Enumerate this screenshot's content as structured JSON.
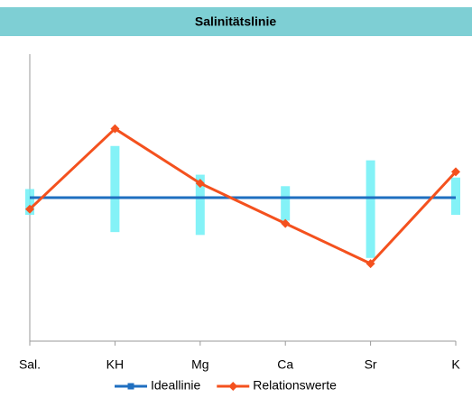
{
  "chart_data": {
    "type": "line",
    "title": "Salinitätslinie",
    "categories": [
      "Sal.",
      "KH",
      "Mg",
      "Ca",
      "Sr",
      "K"
    ],
    "series": [
      {
        "name": "Ideallinie",
        "color": "#1f6fc0",
        "marker": "square",
        "values": [
          1,
          1,
          1,
          1,
          1,
          1
        ]
      },
      {
        "name": "Relationswerte",
        "color": "#f4511e",
        "marker": "diamond",
        "values": [
          0.96,
          1.24,
          1.05,
          0.91,
          0.77,
          1.09
        ]
      }
    ],
    "ranges": {
      "color": "#6ff0f6",
      "low": [
        0.94,
        0.88,
        0.87,
        0.92,
        0.79,
        0.94
      ],
      "high": [
        1.03,
        1.18,
        1.08,
        1.04,
        1.13,
        1.07
      ]
    },
    "ylim": [
      0.5,
      1.5
    ]
  }
}
